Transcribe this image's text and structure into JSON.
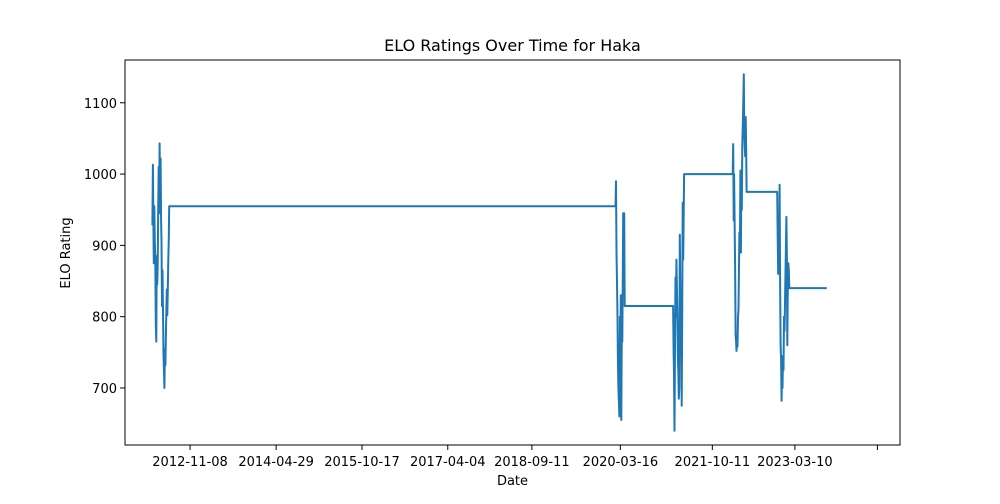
{
  "chart_data": {
    "type": "line",
    "title": "ELO Ratings Over Time for Haka",
    "xlabel": "Date",
    "ylabel": "ELO Rating",
    "x_ticks": [
      "2012-11-08",
      "2014-04-29",
      "2015-10-17",
      "2017-04-04",
      "2018-09-11",
      "2020-03-16",
      "2021-10-11",
      "2023-03-10"
    ],
    "y_ticks": [
      700,
      800,
      900,
      1000,
      1100
    ],
    "xlim": [
      "2011-09-29",
      "2024-12-25"
    ],
    "ylim": [
      620,
      1160
    ],
    "grid": false,
    "series": [
      {
        "color": "#1f77b4",
        "points": [
          [
            "2012-03-18",
            928
          ],
          [
            "2012-03-21",
            1013
          ],
          [
            "2012-03-24",
            930
          ],
          [
            "2012-03-27",
            875
          ],
          [
            "2012-03-30",
            955
          ],
          [
            "2012-04-02",
            905
          ],
          [
            "2012-04-05",
            880
          ],
          [
            "2012-04-08",
            790
          ],
          [
            "2012-04-11",
            765
          ],
          [
            "2012-04-14",
            885
          ],
          [
            "2012-04-17",
            845
          ],
          [
            "2012-04-20",
            870
          ],
          [
            "2012-04-23",
            950
          ],
          [
            "2012-04-26",
            1010
          ],
          [
            "2012-04-29",
            945
          ],
          [
            "2012-05-02",
            1043
          ],
          [
            "2012-05-05",
            955
          ],
          [
            "2012-05-08",
            1022
          ],
          [
            "2012-05-11",
            935
          ],
          [
            "2012-05-14",
            905
          ],
          [
            "2012-05-17",
            815
          ],
          [
            "2012-05-20",
            865
          ],
          [
            "2012-05-23",
            808
          ],
          [
            "2012-05-26",
            745
          ],
          [
            "2012-05-29",
            728
          ],
          [
            "2012-06-01",
            700
          ],
          [
            "2012-06-04",
            755
          ],
          [
            "2012-06-07",
            732
          ],
          [
            "2012-06-10",
            775
          ],
          [
            "2012-06-13",
            805
          ],
          [
            "2012-06-16",
            838
          ],
          [
            "2012-06-19",
            802
          ],
          [
            "2012-06-22",
            840
          ],
          [
            "2012-06-25",
            880
          ],
          [
            "2012-06-28",
            910
          ],
          [
            "2012-07-01",
            955
          ],
          [
            "2020-02-15",
            955
          ],
          [
            "2020-02-18",
            990
          ],
          [
            "2020-02-21",
            890
          ],
          [
            "2020-02-24",
            848
          ],
          [
            "2020-02-27",
            800
          ],
          [
            "2020-03-01",
            740
          ],
          [
            "2020-03-04",
            700
          ],
          [
            "2020-03-07",
            680
          ],
          [
            "2020-03-10",
            660
          ],
          [
            "2020-03-13",
            800
          ],
          [
            "2020-03-16",
            750
          ],
          [
            "2020-03-19",
            830
          ],
          [
            "2020-03-22",
            655
          ],
          [
            "2020-03-25",
            785
          ],
          [
            "2020-03-28",
            765
          ],
          [
            "2020-03-31",
            860
          ],
          [
            "2020-04-03",
            945
          ],
          [
            "2020-04-06",
            878
          ],
          [
            "2020-04-09",
            945
          ],
          [
            "2020-04-12",
            815
          ],
          [
            "2021-02-08",
            815
          ],
          [
            "2021-02-11",
            750
          ],
          [
            "2021-02-14",
            720
          ],
          [
            "2021-02-17",
            640
          ],
          [
            "2021-02-20",
            760
          ],
          [
            "2021-02-23",
            855
          ],
          [
            "2021-02-26",
            800
          ],
          [
            "2021-03-01",
            880
          ],
          [
            "2021-03-04",
            840
          ],
          [
            "2021-03-07",
            800
          ],
          [
            "2021-03-10",
            740
          ],
          [
            "2021-03-13",
            720
          ],
          [
            "2021-03-16",
            685
          ],
          [
            "2021-03-19",
            700
          ],
          [
            "2021-03-22",
            915
          ],
          [
            "2021-03-25",
            840
          ],
          [
            "2021-03-28",
            800
          ],
          [
            "2021-03-31",
            780
          ],
          [
            "2021-04-03",
            675
          ],
          [
            "2021-04-06",
            800
          ],
          [
            "2021-04-09",
            960
          ],
          [
            "2021-04-12",
            880
          ],
          [
            "2021-04-15",
            945
          ],
          [
            "2021-04-18",
            1000
          ],
          [
            "2022-02-15",
            1000
          ],
          [
            "2022-02-18",
            1042
          ],
          [
            "2022-02-21",
            935
          ],
          [
            "2022-02-24",
            1000
          ],
          [
            "2022-02-27",
            935
          ],
          [
            "2022-03-02",
            870
          ],
          [
            "2022-03-05",
            775
          ],
          [
            "2022-03-08",
            765
          ],
          [
            "2022-03-11",
            752
          ],
          [
            "2022-03-14",
            765
          ],
          [
            "2022-03-17",
            758
          ],
          [
            "2022-03-20",
            800
          ],
          [
            "2022-03-23",
            810
          ],
          [
            "2022-03-26",
            860
          ],
          [
            "2022-03-29",
            918
          ],
          [
            "2022-04-01",
            890
          ],
          [
            "2022-04-04",
            1005
          ],
          [
            "2022-04-07",
            890
          ],
          [
            "2022-04-10",
            975
          ],
          [
            "2022-04-13",
            950
          ],
          [
            "2022-04-16",
            1042
          ],
          [
            "2022-04-19",
            1068
          ],
          [
            "2022-04-22",
            1100
          ],
          [
            "2022-04-25",
            1140
          ],
          [
            "2022-04-28",
            1068
          ],
          [
            "2022-05-01",
            1040
          ],
          [
            "2022-05-04",
            1025
          ],
          [
            "2022-05-07",
            1080
          ],
          [
            "2022-05-10",
            1030
          ],
          [
            "2022-05-13",
            975
          ],
          [
            "2022-11-20",
            975
          ],
          [
            "2022-11-23",
            910
          ],
          [
            "2022-11-26",
            860
          ],
          [
            "2022-11-29",
            890
          ],
          [
            "2022-12-02",
            870
          ],
          [
            "2022-12-05",
            985
          ],
          [
            "2022-12-08",
            850
          ],
          [
            "2022-12-11",
            760
          ],
          [
            "2022-12-14",
            740
          ],
          [
            "2022-12-17",
            682
          ],
          [
            "2022-12-20",
            735
          ],
          [
            "2022-12-23",
            700
          ],
          [
            "2022-12-26",
            745
          ],
          [
            "2022-12-29",
            725
          ],
          [
            "2023-01-01",
            800
          ],
          [
            "2023-01-04",
            780
          ],
          [
            "2023-01-07",
            810
          ],
          [
            "2023-01-10",
            855
          ],
          [
            "2023-01-13",
            895
          ],
          [
            "2023-01-16",
            940
          ],
          [
            "2023-01-19",
            880
          ],
          [
            "2023-01-22",
            760
          ],
          [
            "2023-01-25",
            840
          ],
          [
            "2023-01-28",
            875
          ],
          [
            "2023-01-31",
            865
          ],
          [
            "2023-02-03",
            840
          ],
          [
            "2023-09-25",
            840
          ]
        ]
      }
    ]
  }
}
